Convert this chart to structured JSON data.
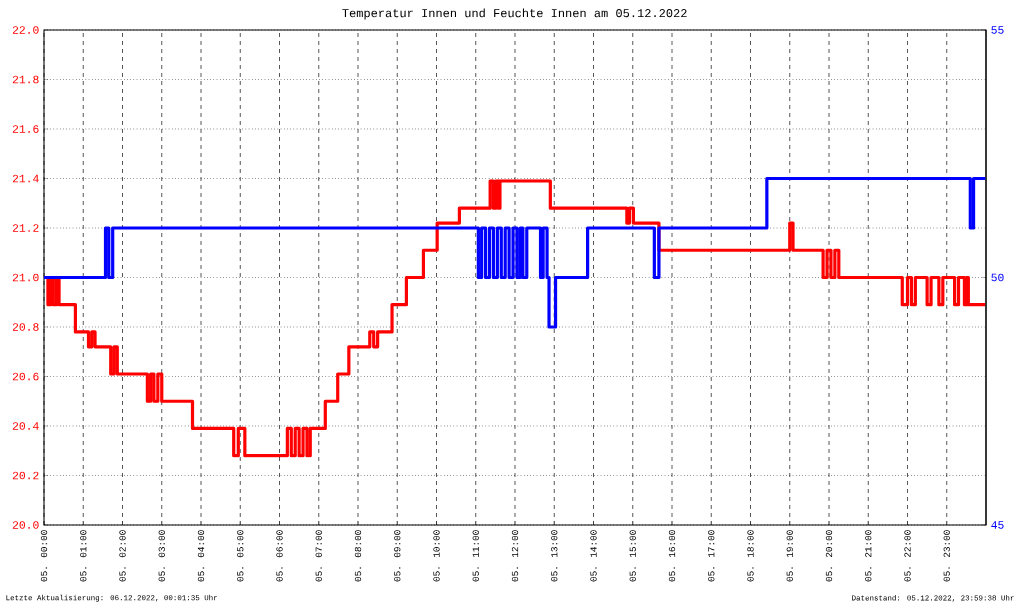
{
  "chart_data": {
    "type": "step",
    "title": "Temperatur Innen und Feuchte Innen am 05.12.2022",
    "annotations": [
      "Letzte Aktualisierung: 06.12.2022, 00:01:35 Uhr",
      "Datenstand: 05.12.2022, 23:59:38 Uhr"
    ],
    "xlim": [
      "2022-12-05T00:00",
      "2022-12-06T00:00"
    ],
    "xticks": [
      {
        "value": "2022-12-05T00:00",
        "label": "05. 00:00"
      },
      {
        "value": "2022-12-05T01:00",
        "label": "05. 01:00"
      },
      {
        "value": "2022-12-05T02:00",
        "label": "05. 02:00"
      },
      {
        "value": "2022-12-05T03:00",
        "label": "05. 03:00"
      },
      {
        "value": "2022-12-05T04:00",
        "label": "05. 04:00"
      },
      {
        "value": "2022-12-05T05:00",
        "label": "05. 05:00"
      },
      {
        "value": "2022-12-05T06:00",
        "label": "05. 06:00"
      },
      {
        "value": "2022-12-05T07:00",
        "label": "05. 07:00"
      },
      {
        "value": "2022-12-05T08:00",
        "label": "05. 08:00"
      },
      {
        "value": "2022-12-05T09:00",
        "label": "05. 09:00"
      },
      {
        "value": "2022-12-05T10:00",
        "label": "05. 10:00"
      },
      {
        "value": "2022-12-05T11:00",
        "label": "05. 11:00"
      },
      {
        "value": "2022-12-05T12:00",
        "label": "05. 12:00"
      },
      {
        "value": "2022-12-05T13:00",
        "label": "05. 13:00"
      },
      {
        "value": "2022-12-05T14:00",
        "label": "05. 14:00"
      },
      {
        "value": "2022-12-05T15:00",
        "label": "05. 15:00"
      },
      {
        "value": "2022-12-05T16:00",
        "label": "05. 16:00"
      },
      {
        "value": "2022-12-05T17:00",
        "label": "05. 17:00"
      },
      {
        "value": "2022-12-05T18:00",
        "label": "05. 18:00"
      },
      {
        "value": "2022-12-05T19:00",
        "label": "05. 19:00"
      },
      {
        "value": "2022-12-05T20:00",
        "label": "05. 20:00"
      },
      {
        "value": "2022-12-05T21:00",
        "label": "05. 21:00"
      },
      {
        "value": "2022-12-05T22:00",
        "label": "05. 22:00"
      },
      {
        "value": "2022-12-05T23:00",
        "label": "05. 23:00"
      }
    ],
    "ylim": [
      20,
      22
    ],
    "yticks": [
      {
        "value": 20,
        "label": "20.0"
      },
      {
        "value": 20.2,
        "label": "20.2"
      },
      {
        "value": 20.4,
        "label": "20.4"
      },
      {
        "value": 20.6,
        "label": "20.6"
      },
      {
        "value": 20.8,
        "label": "20.8"
      },
      {
        "value": 21,
        "label": "21.0"
      },
      {
        "value": 21.2,
        "label": "21.2"
      },
      {
        "value": 21.4,
        "label": "21.4"
      },
      {
        "value": 21.6,
        "label": "21.6"
      },
      {
        "value": 21.8,
        "label": "21.8"
      },
      {
        "value": 22,
        "label": "22.0"
      }
    ],
    "y2lim": [
      45,
      55
    ],
    "y2ticks": [
      45,
      50,
      55
    ],
    "grid": true,
    "series": [
      {
        "color": "#ff0000",
        "x": [
          "2022-12-05T00:00",
          "2022-12-05T00:06",
          "2022-12-05T00:10",
          "2022-12-05T00:14",
          "2022-12-05T00:19",
          "2022-12-05T00:23",
          "2022-12-05T00:48",
          "2022-12-05T01:08",
          "2022-12-05T01:13",
          "2022-12-05T01:18",
          "2022-12-05T01:42",
          "2022-12-05T01:47",
          "2022-12-05T01:52",
          "2022-12-05T02:38",
          "2022-12-05T02:43",
          "2022-12-05T02:48",
          "2022-12-05T02:54",
          "2022-12-05T03:00",
          "2022-12-05T03:47",
          "2022-12-05T04:50",
          "2022-12-05T04:57",
          "2022-12-05T05:07",
          "2022-12-05T06:12",
          "2022-12-05T06:18",
          "2022-12-05T06:24",
          "2022-12-05T06:30",
          "2022-12-05T06:36",
          "2022-12-05T06:42",
          "2022-12-05T06:47",
          "2022-12-05T07:10",
          "2022-12-05T07:29",
          "2022-12-05T07:46",
          "2022-12-05T08:18",
          "2022-12-05T08:24",
          "2022-12-05T08:30",
          "2022-12-05T08:52",
          "2022-12-05T09:14",
          "2022-12-05T09:40",
          "2022-12-05T10:01",
          "2022-12-05T10:35",
          "2022-12-05T11:22",
          "2022-12-05T11:27",
          "2022-12-05T11:31",
          "2022-12-05T11:35",
          "2022-12-05T11:37",
          "2022-12-05T12:54",
          "2022-12-05T14:51",
          "2022-12-05T14:55",
          "2022-12-05T15:01",
          "2022-12-05T15:40",
          "2022-12-05T19:00",
          "2022-12-05T19:05",
          "2022-12-05T19:51",
          "2022-12-05T19:57",
          "2022-12-05T20:03",
          "2022-12-05T20:09",
          "2022-12-05T20:15",
          "2022-12-05T21:52",
          "2022-12-05T22:00",
          "2022-12-05T22:06",
          "2022-12-05T22:12",
          "2022-12-05T22:30",
          "2022-12-05T22:36",
          "2022-12-05T22:48",
          "2022-12-05T22:54",
          "2022-12-05T23:12",
          "2022-12-05T23:18",
          "2022-12-05T23:27",
          "2022-12-05T23:30",
          "2022-12-05T23:33",
          "2022-12-05T23:59"
        ],
        "values": [
          21.0,
          20.89,
          21.0,
          20.89,
          21.0,
          20.89,
          20.78,
          20.72,
          20.78,
          20.72,
          20.61,
          20.72,
          20.61,
          20.5,
          20.61,
          20.5,
          20.61,
          20.5,
          20.39,
          20.28,
          20.39,
          20.28,
          20.39,
          20.28,
          20.39,
          20.28,
          20.39,
          20.28,
          20.39,
          20.5,
          20.61,
          20.72,
          20.78,
          20.72,
          20.78,
          20.89,
          21.0,
          21.11,
          21.22,
          21.28,
          21.39,
          21.28,
          21.39,
          21.28,
          21.39,
          21.28,
          21.22,
          21.28,
          21.22,
          21.11,
          21.22,
          21.11,
          21.0,
          21.11,
          21.0,
          21.11,
          21.0,
          20.89,
          21.0,
          20.89,
          21.0,
          20.89,
          21.0,
          20.89,
          21.0,
          20.89,
          21.0,
          20.89,
          21.0,
          20.89,
          20.89
        ]
      },
      {
        "color": "#0000ff",
        "axis": "y2",
        "x": [
          "2022-12-05T00:00",
          "2022-12-05T01:34",
          "2022-12-05T01:39",
          "2022-12-05T01:45",
          "2022-12-05T11:04",
          "2022-12-05T11:09",
          "2022-12-05T11:15",
          "2022-12-05T11:21",
          "2022-12-05T11:27",
          "2022-12-05T11:33",
          "2022-12-05T11:39",
          "2022-12-05T11:45",
          "2022-12-05T11:51",
          "2022-12-05T11:57",
          "2022-12-05T12:03",
          "2022-12-05T12:08",
          "2022-12-05T12:12",
          "2022-12-05T12:18",
          "2022-12-05T12:39",
          "2022-12-05T12:43",
          "2022-12-05T12:49",
          "2022-12-05T12:52",
          "2022-12-05T13:02",
          "2022-12-05T13:51",
          "2022-12-05T15:33",
          "2022-12-05T15:40",
          "2022-12-05T18:25",
          "2022-12-05T23:36",
          "2022-12-05T23:41",
          "2022-12-05T23:59"
        ],
        "values": [
          50,
          51,
          50,
          51,
          50,
          51,
          50,
          51,
          50,
          51,
          50,
          51,
          50,
          51,
          50,
          51,
          50,
          51,
          50,
          51,
          50,
          49,
          50,
          51,
          50,
          51,
          52,
          51,
          52,
          52
        ]
      }
    ]
  }
}
